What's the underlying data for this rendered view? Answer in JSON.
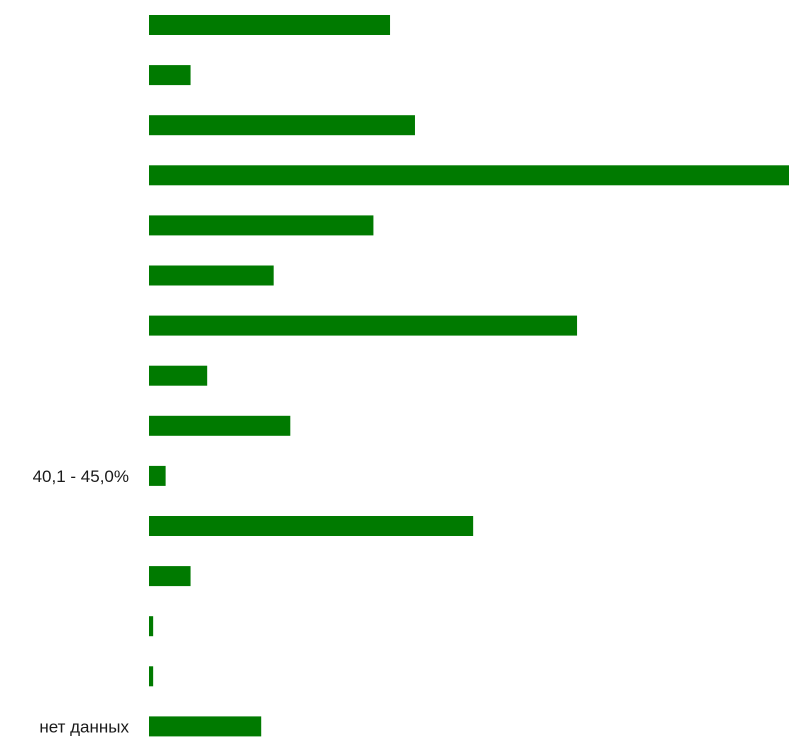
{
  "chart_data": {
    "type": "bar",
    "orientation": "horizontal",
    "bar_color": "#007a00",
    "xlim": [
      0,
      154
    ],
    "grid": false,
    "legend": "none",
    "categories": [
      "",
      "",
      "",
      "",
      "",
      "",
      "",
      "",
      "",
      "40,1 - 45,0%",
      "",
      "",
      "",
      "",
      "нет данных"
    ],
    "values": [
      58,
      10,
      64,
      154,
      54,
      30,
      103,
      14,
      34,
      4,
      78,
      10,
      1,
      1,
      27
    ]
  }
}
